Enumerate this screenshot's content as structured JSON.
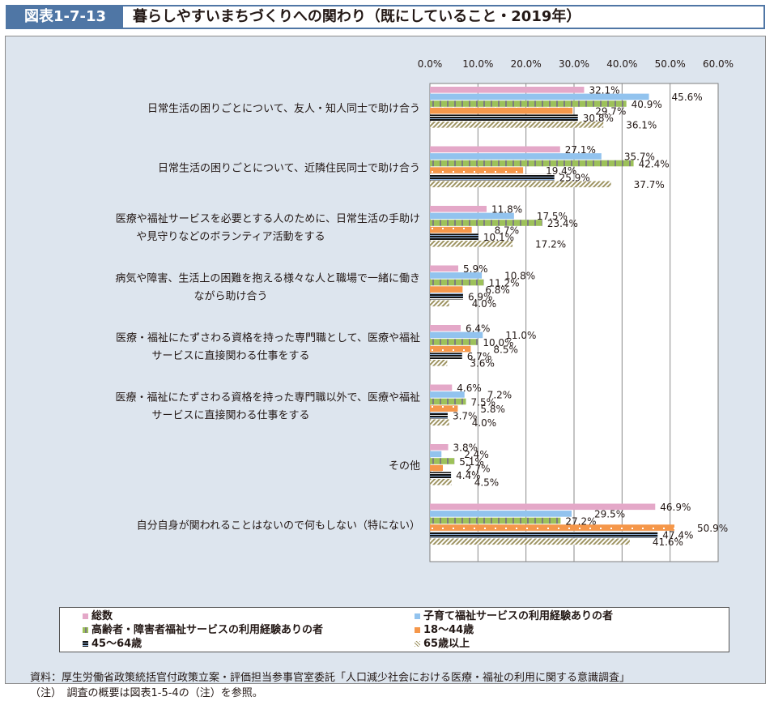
{
  "header": {
    "figure_number": "図表1-7-13",
    "title": "暮らしやすいまちづくりへの関わり（既にしていること・2019年）"
  },
  "chart_data": {
    "type": "bar",
    "orientation": "horizontal",
    "title": "暮らしやすいまちづくりへの関わり（既にしていること・2019年）",
    "xlabel": "",
    "ylabel": "",
    "xlim": [
      0,
      60
    ],
    "x_ticks": [
      "0.0%",
      "10.0%",
      "20.0%",
      "30.0%",
      "40.0%",
      "50.0%",
      "60.0%"
    ],
    "x_tick_values": [
      0,
      10,
      20,
      30,
      40,
      50,
      60
    ],
    "x_axis_position": "top",
    "grid": true,
    "legend_position": "bottom",
    "unit": "%",
    "categories": [
      [
        "日常生活の困りごとについて、友人・知人同士で助け合う"
      ],
      [
        "日常生活の困りごとについて、近隣住民同士で助け合う"
      ],
      [
        "医療や福祉サービスを必要とする人のために、日常生活の手助け",
        "や見守りなどのボランティア活動をする"
      ],
      [
        "病気や障害、生活上の困難を抱える様々な人と職場で一緒に働き",
        "ながら助け合う"
      ],
      [
        "医療・福祉にたずさわる資格を持った専門職として、医療や福祉",
        "サービスに直接関わる仕事をする"
      ],
      [
        "医療・福祉にたずさわる資格を持った専門職以外で、医療や福祉",
        "サービスに直接関わる仕事をする"
      ],
      [
        "その他"
      ],
      [
        "自分自身が関われることはないので何もしない（特にない）"
      ]
    ],
    "series": [
      {
        "name": "総数",
        "color": "#e4a8c8",
        "pattern": "solid",
        "values": [
          32.1,
          27.1,
          11.8,
          5.9,
          6.4,
          4.6,
          3.8,
          46.9
        ]
      },
      {
        "name": "子育て福祉サービスの利用経験ありの者",
        "color": "#92c3ee",
        "pattern": "solid",
        "values": [
          45.6,
          35.7,
          17.5,
          10.8,
          11.0,
          7.2,
          2.4,
          29.5
        ]
      },
      {
        "name": "高齢者・障害者福祉サービスの利用経験ありの者",
        "color": "#9dc15a",
        "pattern": "vertical-stripes",
        "values": [
          40.9,
          42.4,
          23.4,
          11.2,
          10.0,
          7.5,
          5.1,
          27.2
        ]
      },
      {
        "name": "18〜44歳",
        "color": "#f5974a",
        "pattern": "dots",
        "values": [
          29.7,
          19.4,
          8.7,
          6.8,
          8.5,
          5.8,
          2.7,
          50.9
        ]
      },
      {
        "name": "45〜64歳",
        "color": "#1a1a2e",
        "pattern": "horizontal-stripes",
        "values": [
          30.8,
          25.9,
          10.1,
          6.9,
          6.7,
          3.7,
          4.4,
          47.4
        ]
      },
      {
        "name": "65歳以上",
        "color": "#9e9462",
        "pattern": "diagonal-hatch",
        "values": [
          36.1,
          37.7,
          17.2,
          4.0,
          3.6,
          4.0,
          4.5,
          41.6
        ]
      }
    ]
  },
  "legend": [
    {
      "label": "総数"
    },
    {
      "label": "子育て福祉サービスの利用経験ありの者"
    },
    {
      "label": "高齢者・障害者福祉サービスの利用経験ありの者"
    },
    {
      "label": "18〜44歳"
    },
    {
      "label": "45〜64歳"
    },
    {
      "label": "65歳以上"
    }
  ],
  "notes": {
    "source": "資料：厚生労働省政策統括官付政策立案・評価担当参事官室委託「人口減少社会における医療・福祉の利用に関する意識調査」",
    "note": "（注）　調査の概要は図表1-5-4の（注）を参照。"
  }
}
